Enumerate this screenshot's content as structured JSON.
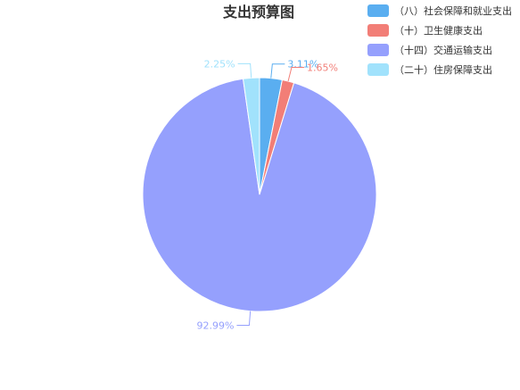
{
  "chart_data": {
    "type": "pie",
    "title": "支出预算图",
    "legend_position": "top-right",
    "series": [
      {
        "name": "（八）社会保障和就业支出",
        "value": 3.11,
        "label": "3.11%",
        "color": "#5aaef0"
      },
      {
        "name": "（十）卫生健康支出",
        "value": 1.65,
        "label": "1.65%",
        "color": "#f27e77"
      },
      {
        "name": "（十四）交通运输支出",
        "value": 92.99,
        "label": "92.99%",
        "color": "#95a0fd"
      },
      {
        "name": "（二十）住房保障支出",
        "value": 2.25,
        "label": "2.25%",
        "color": "#a1e2fc"
      }
    ]
  }
}
